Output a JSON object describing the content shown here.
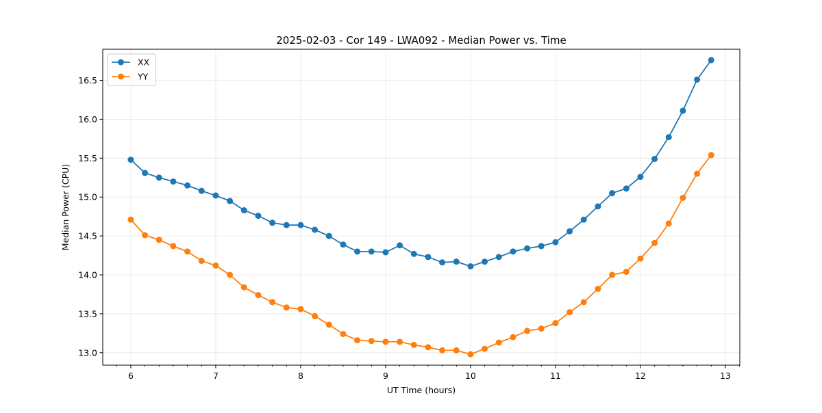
{
  "chart_data": {
    "type": "line",
    "title": "2025-02-03 - Cor 149 - LWA092 - Median Power vs. Time",
    "xlabel": "UT Time (hours)",
    "ylabel": "Median Power (CPU)",
    "xlim": [
      5.67,
      13.17
    ],
    "ylim": [
      12.84,
      16.9
    ],
    "xticks": [
      6,
      7,
      8,
      9,
      10,
      11,
      12,
      13
    ],
    "xtick_labels": [
      "6",
      "7",
      "8",
      "9",
      "10",
      "11",
      "12",
      "13"
    ],
    "yticks": [
      13.0,
      13.5,
      14.0,
      14.5,
      15.0,
      15.5,
      16.0,
      16.5
    ],
    "ytick_labels": [
      "13.0",
      "13.5",
      "14.0",
      "14.5",
      "15.0",
      "15.5",
      "16.0",
      "16.5"
    ],
    "grid": true,
    "legend_position": "top-left",
    "x": [
      6.0,
      6.1667,
      6.3333,
      6.5,
      6.6667,
      6.8333,
      7.0,
      7.1667,
      7.3333,
      7.5,
      7.6667,
      7.8333,
      8.0,
      8.1667,
      8.3333,
      8.5,
      8.6667,
      8.8333,
      9.0,
      9.1667,
      9.3333,
      9.5,
      9.6667,
      9.8333,
      10.0,
      10.1667,
      10.3333,
      10.5,
      10.6667,
      10.8333,
      11.0,
      11.1667,
      11.3333,
      11.5,
      11.6667,
      11.8333,
      12.0,
      12.1667,
      12.3333,
      12.5,
      12.6667,
      12.8333
    ],
    "series": [
      {
        "name": "XX",
        "color": "#1f77b4",
        "values": [
          15.48,
          15.31,
          15.25,
          15.2,
          15.15,
          15.08,
          15.02,
          14.95,
          14.83,
          14.76,
          14.67,
          14.64,
          14.64,
          14.58,
          14.5,
          14.39,
          14.3,
          14.3,
          14.29,
          14.38,
          14.27,
          14.23,
          14.16,
          14.17,
          14.11,
          14.17,
          14.23,
          14.3,
          14.34,
          14.37,
          14.42,
          14.56,
          14.71,
          14.88,
          15.05,
          15.11,
          15.26,
          15.49,
          15.77,
          16.11,
          16.51,
          16.76
        ]
      },
      {
        "name": "YY",
        "color": "#ff7f0e",
        "values": [
          14.71,
          14.51,
          14.45,
          14.37,
          14.3,
          14.18,
          14.12,
          14.0,
          13.84,
          13.74,
          13.65,
          13.58,
          13.56,
          13.47,
          13.36,
          13.24,
          13.16,
          13.15,
          13.14,
          13.14,
          13.1,
          13.07,
          13.03,
          13.03,
          12.98,
          13.05,
          13.13,
          13.2,
          13.28,
          13.31,
          13.38,
          13.52,
          13.65,
          13.82,
          14.0,
          14.04,
          14.21,
          14.41,
          14.66,
          14.99,
          15.3,
          15.54
        ]
      }
    ]
  }
}
